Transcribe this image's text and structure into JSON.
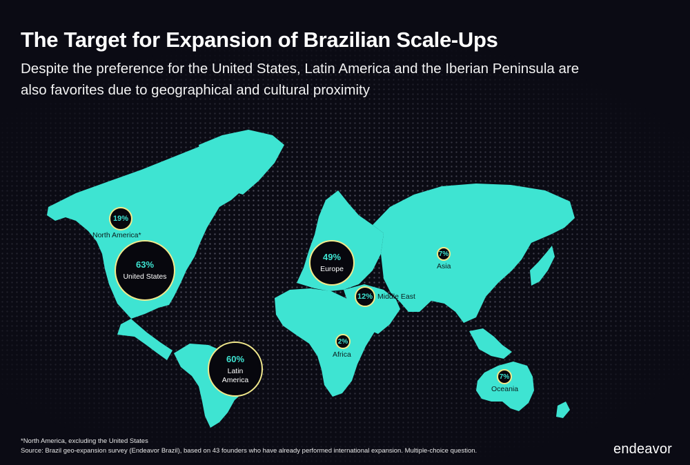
{
  "header": {
    "title": "The Target for Expansion of Brazilian Scale-Ups",
    "subtitle": "Despite the preference for the United States, Latin America and the Iberian Peninsula are also favorites due to geographical and cultural proximity"
  },
  "colors": {
    "land": "#3ee4d2",
    "background": "#0b0b14",
    "bubble_fill": "#07070d",
    "bubble_border": "#f2e98c",
    "percent_text": "#3ee4d2"
  },
  "regions": [
    {
      "id": "north_america",
      "percent": "19%",
      "label": "North America*",
      "value": 19
    },
    {
      "id": "united_states",
      "percent": "63%",
      "label": "United States",
      "value": 63
    },
    {
      "id": "latin_america",
      "percent": "60%",
      "label": "Latin America",
      "value": 60
    },
    {
      "id": "europe",
      "percent": "49%",
      "label": "Europe",
      "value": 49
    },
    {
      "id": "middle_east",
      "percent": "12%",
      "label": "Middle East",
      "value": 12
    },
    {
      "id": "asia",
      "percent": "7%",
      "label": "Asia",
      "value": 7
    },
    {
      "id": "africa",
      "percent": "2%",
      "label": "Africa",
      "value": 2
    },
    {
      "id": "oceania",
      "percent": "7%",
      "label": "Oceania",
      "value": 7
    }
  ],
  "footer": {
    "note": "*North America, excluding the United States",
    "source": "Source: Brazil geo-expansion survey (Endeavor Brazil), based on 43 founders who have already performed international expansion. Multiple-choice question."
  },
  "brand": {
    "logo_text": "endeavor"
  }
}
